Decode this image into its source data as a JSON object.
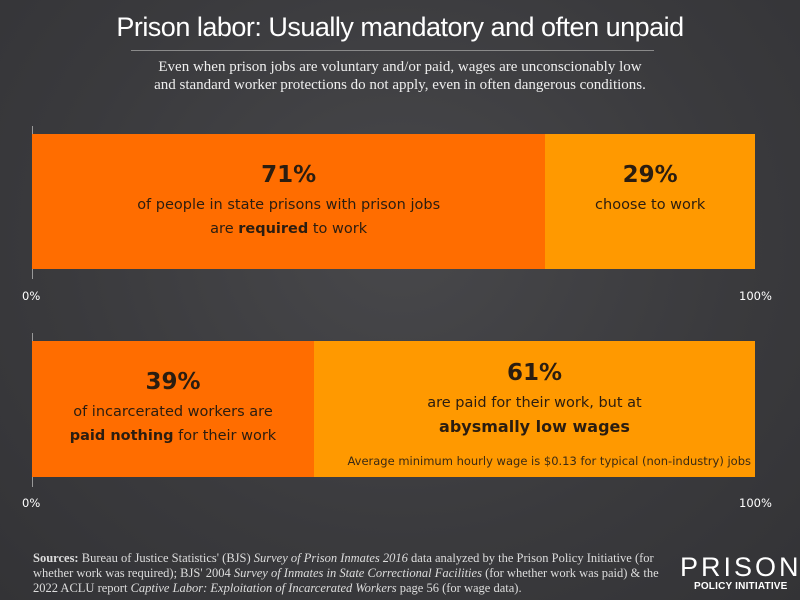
{
  "title": "Prison labor: Usually mandatory and often unpaid",
  "subtitle_line1": "Even when prison jobs are voluntary and/or paid, wages are unconscionably low",
  "subtitle_line2": "and standard worker protections do not apply, even in often dangerous conditions.",
  "colors": {
    "primary": "#ff6d00",
    "secondary": "#ff9900",
    "background": "#3a3a3d"
  },
  "chart_data": [
    {
      "type": "bar",
      "stacked": true,
      "orientation": "horizontal",
      "xlim": [
        0,
        100
      ],
      "tick_labels": [
        "0%",
        "100%"
      ],
      "segments": [
        {
          "value": 71,
          "label": "71%",
          "text1": "of people in state prisons with prison jobs",
          "text2_pre": "are ",
          "text2_bold": "required",
          "text2_post": " to work",
          "color": "#ff6d00"
        },
        {
          "value": 29,
          "label": "29%",
          "text1": "choose to work",
          "color": "#ff9900"
        }
      ]
    },
    {
      "type": "bar",
      "stacked": true,
      "orientation": "horizontal",
      "xlim": [
        0,
        100
      ],
      "tick_labels": [
        "0%",
        "100%"
      ],
      "segments": [
        {
          "value": 39,
          "label": "39%",
          "text1": "of incarcerated workers are",
          "text2_bold": "paid nothing",
          "text2_post": " for their work",
          "color": "#ff6d00"
        },
        {
          "value": 61,
          "label": "61%",
          "text1": "are paid for their work, but at",
          "text2_bold": "abysmally low wages",
          "color": "#ff9900"
        }
      ],
      "note": "Average minimum hourly wage is $0.13 for typical (non-industry) jobs"
    }
  ],
  "sources": {
    "label": "Sources:",
    "p1": " Bureau of Justice Statistics' (BJS) ",
    "i1": "Survey of Prison Inmates 2016",
    "p2": " data analyzed by the Prison Policy Initiative (for whether work was required); BJS' 2004 ",
    "i2": "Survey of Inmates in State Correctional Facilities",
    "p3": " (for whether work was paid) & the 2022 ACLU report ",
    "i3": "Captive Labor: Exploitation of Incarcerated Workers",
    "p4": " page 56 (for wage data)."
  },
  "logo": {
    "line1": "PRISON",
    "line2": "POLICY INITIATIVE"
  }
}
